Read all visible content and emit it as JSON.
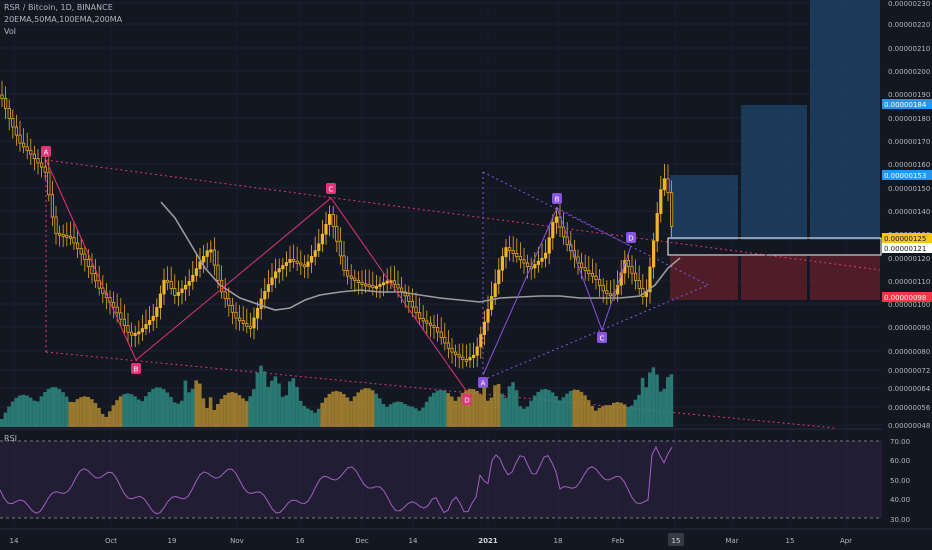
{
  "header": {
    "symbol_line": "RSR / Bitcoin, 1D, BINANCE",
    "indicators_line": "20EMA,50MA,100EMA,200MA",
    "vol_label": "Vol",
    "rsi_label": "RSI"
  },
  "colors": {
    "background": "#131722",
    "bull_candle": "#f0b429",
    "bear_candle": "#e8a820",
    "vol_teal": "#2e8a80",
    "vol_orange": "#b08a30",
    "ma_line": "#9c9c9c",
    "pattern_red": "#e0357a",
    "pattern_purple": "#8a55e0",
    "profit_zone": "#1e4266",
    "loss_zone": "#5a1f28",
    "rsi_line": "#a35fc2",
    "label_blue": "#2196f3",
    "label_yellow": "#f5c518",
    "label_white": "#ffffff",
    "label_red": "#f23645"
  },
  "chart_data": {
    "type": "candlestick",
    "price_axis": {
      "ticks": [
        "0.00000230",
        "0.00000220",
        "0.00000210",
        "0.00000200",
        "0.00000190",
        "0.00000180",
        "0.00000170",
        "0.00000160",
        "0.00000150",
        "0.00000140",
        "0.00000130",
        "0.00000120",
        "0.00000110",
        "0.00000100",
        "0.00000090",
        "0.00000080",
        "0.00000072",
        "0.00000064",
        "0.00000056",
        "0.00000048"
      ]
    },
    "price_labels": [
      {
        "text": "0.00000184",
        "style": "blue"
      },
      {
        "text": "0.00000153",
        "style": "blue"
      },
      {
        "text": "0.00000125",
        "style": "yellow"
      },
      {
        "text": "0.00000121",
        "style": "white"
      },
      {
        "text": "0.00000098",
        "style": "red"
      }
    ],
    "rsi_axis": {
      "ticks": [
        "70.00",
        "60.00",
        "50.00",
        "40.00",
        "30.00"
      ],
      "levels": [
        70,
        30
      ]
    },
    "time_axis": {
      "labels": [
        "14",
        "Oct",
        "19",
        "Nov",
        "16",
        "Dec",
        "14",
        "2021",
        "18",
        "Feb",
        "15",
        "Mar",
        "15",
        "Apr"
      ]
    },
    "pattern_points": [
      {
        "label": "A",
        "color": "red"
      },
      {
        "label": "B",
        "color": "red"
      },
      {
        "label": "C",
        "color": "red"
      },
      {
        "label": "D",
        "color": "red"
      },
      {
        "label": "A",
        "color": "purple"
      },
      {
        "label": "B",
        "color": "purple"
      },
      {
        "label": "C",
        "color": "purple"
      },
      {
        "label": "D",
        "color": "purple"
      }
    ],
    "current_price_marker": "15"
  }
}
